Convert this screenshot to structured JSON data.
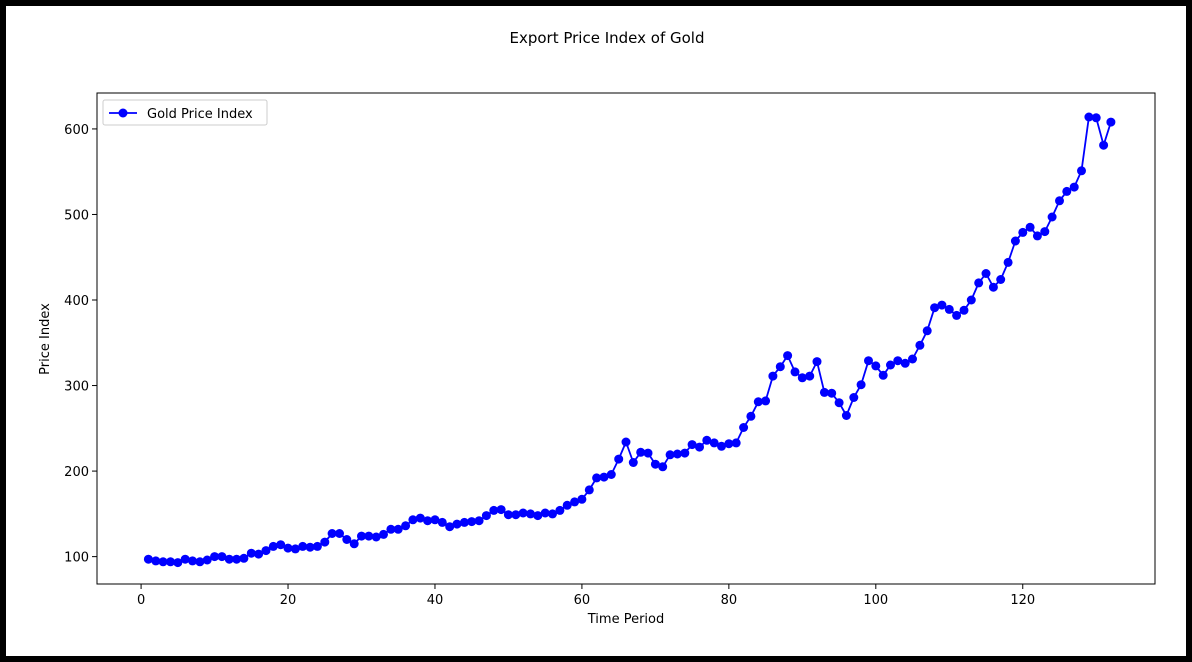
{
  "chart_data": {
    "type": "line",
    "title": "Export Price Index of Gold",
    "xlabel": "Time Period",
    "ylabel": "Price Index",
    "xlim": [
      -6,
      138
    ],
    "ylim": [
      68,
      642
    ],
    "xticks": [
      0,
      20,
      40,
      60,
      80,
      100,
      120
    ],
    "yticks": [
      100,
      200,
      300,
      400,
      500,
      600
    ],
    "grid": false,
    "legend": "top-left",
    "color": "#0000ff",
    "series": [
      {
        "name": "Gold Price Index",
        "x": [
          1,
          2,
          3,
          4,
          5,
          6,
          7,
          8,
          9,
          10,
          11,
          12,
          13,
          14,
          15,
          16,
          17,
          18,
          19,
          20,
          21,
          22,
          23,
          24,
          25,
          26,
          27,
          28,
          29,
          30,
          31,
          32,
          33,
          34,
          35,
          36,
          37,
          38,
          39,
          40,
          41,
          42,
          43,
          44,
          45,
          46,
          47,
          48,
          49,
          50,
          51,
          52,
          53,
          54,
          55,
          56,
          57,
          58,
          59,
          60,
          61,
          62,
          63,
          64,
          65,
          66,
          67,
          68,
          69,
          70,
          71,
          72,
          73,
          74,
          75,
          76,
          77,
          78,
          79,
          80,
          81,
          82,
          83,
          84,
          85,
          86,
          87,
          88,
          89,
          90,
          91,
          92,
          93,
          94,
          95,
          96,
          97,
          98,
          99,
          100,
          101,
          102,
          103,
          104,
          105,
          106,
          107,
          108,
          109,
          110,
          111,
          112,
          113,
          114,
          115,
          116,
          117,
          118,
          119,
          120,
          121,
          122,
          123,
          124,
          125,
          126,
          127,
          128,
          129,
          130,
          131,
          132
        ],
        "y": [
          97,
          95,
          94,
          94,
          93,
          97,
          95,
          94,
          96,
          100,
          100,
          97,
          97,
          98,
          104,
          103,
          107,
          112,
          114,
          110,
          109,
          112,
          111,
          112,
          117,
          127,
          127,
          120,
          115,
          124,
          124,
          123,
          126,
          132,
          132,
          136,
          143,
          145,
          142,
          143,
          140,
          135,
          138,
          140,
          141,
          142,
          148,
          154,
          155,
          149,
          149,
          151,
          150,
          148,
          151,
          150,
          154,
          160,
          164,
          167,
          178,
          192,
          193,
          196,
          214,
          234,
          210,
          222,
          221,
          208,
          205,
          219,
          220,
          221,
          231,
          228,
          236,
          233,
          229,
          232,
          233,
          251,
          264,
          281,
          282,
          311,
          322,
          335,
          316,
          309,
          311,
          328,
          292,
          291,
          280,
          265,
          286,
          301,
          329,
          323,
          312,
          324,
          329,
          326,
          331,
          347,
          364,
          391,
          394,
          389,
          382,
          388,
          400,
          420,
          431,
          415,
          424,
          444,
          469,
          479,
          485,
          475,
          480,
          497,
          516,
          527,
          532,
          551,
          614,
          613,
          581,
          608
        ]
      }
    ]
  }
}
